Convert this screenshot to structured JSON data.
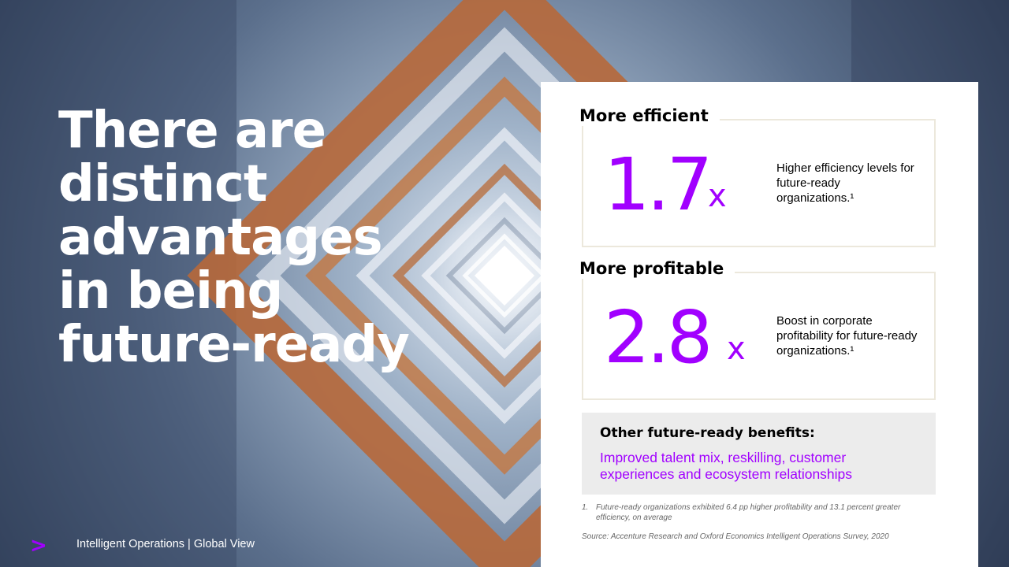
{
  "headline": {
    "lines": [
      "There are",
      "distinct",
      "advantages",
      "in being",
      "future-ready"
    ]
  },
  "footer": {
    "logo_glyph": ">",
    "text": "Intelligent Operations | Global View"
  },
  "stats": [
    {
      "title": "More efficient",
      "value": "1.7",
      "suffix": "x",
      "description": "Higher efficiency levels for future-ready organizations.¹"
    },
    {
      "title": "More profitable",
      "value": "2.8",
      "suffix": "x",
      "description": "Boost in corporate profitability for future-ready organizations.¹"
    }
  ],
  "other_benefits": {
    "title": "Other future-ready benefits:",
    "body": "Improved talent mix, reskilling, customer experiences and ecosystem relationships"
  },
  "footnote": {
    "number": "1.",
    "text": "Future-ready organizations exhibited 6.4 pp higher profitability and 13.1 percent greater efficiency, on average"
  },
  "source": "Source: Accenture Research and Oxford Economics Intelligent Operations Survey, 2020",
  "colors": {
    "accent": "#a100ff",
    "panel_bg": "#ffffff",
    "box_border": "#ece8dc",
    "benefits_bg": "#ececec"
  }
}
